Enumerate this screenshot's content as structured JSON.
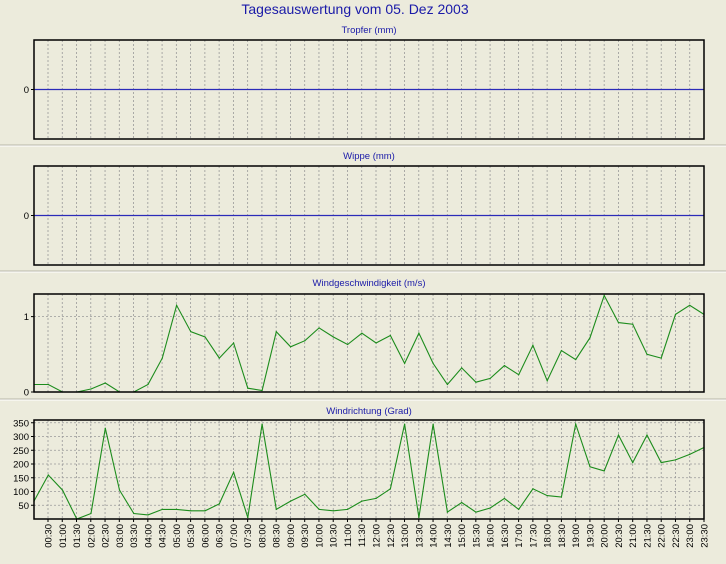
{
  "page": {
    "title": "Tagesauswertung vom 05. Dez 2003"
  },
  "colors": {
    "title": "#1a1aa8",
    "zero_line": "#2b2bb8",
    "series": "#1c8c1c",
    "grid": "#999999",
    "background": "#ecebdc"
  },
  "x_labels": [
    "00:30",
    "01:00",
    "01:30",
    "02:00",
    "02:30",
    "03:00",
    "03:30",
    "04:00",
    "04:30",
    "05:00",
    "05:30",
    "06:00",
    "06:30",
    "07:00",
    "07:30",
    "08:00",
    "08:30",
    "09:00",
    "09:30",
    "10:00",
    "10:30",
    "11:00",
    "11:30",
    "12:00",
    "12:30",
    "13:00",
    "13:30",
    "14:00",
    "14:30",
    "15:00",
    "15:30",
    "16:00",
    "16:30",
    "17:00",
    "17:30",
    "18:00",
    "18:30",
    "19:00",
    "19:30",
    "20:00",
    "20:30",
    "21:00",
    "21:30",
    "22:00",
    "22:30",
    "23:00",
    "23:30"
  ],
  "chart_data": [
    {
      "type": "line",
      "title": "Tropfer (mm)",
      "grid": true,
      "y_ticks": [
        "0"
      ],
      "zero_line": true,
      "values": []
    },
    {
      "type": "line",
      "title": "Wippe (mm)",
      "grid": true,
      "y_ticks": [
        "0"
      ],
      "zero_line": true,
      "values": []
    },
    {
      "type": "line",
      "title": "Windgeschwindigkeit (m/s)",
      "grid": true,
      "ylim": [
        0,
        1.3
      ],
      "y_ticks": [
        "0",
        "1"
      ],
      "zero_line": false,
      "values": [
        0.1,
        0.1,
        0.0,
        0.0,
        0.04,
        0.12,
        0.0,
        0.0,
        0.1,
        0.45,
        1.15,
        0.8,
        0.73,
        0.45,
        0.65,
        0.05,
        0.02,
        0.8,
        0.6,
        0.68,
        0.85,
        0.73,
        0.63,
        0.78,
        0.65,
        0.75,
        0.38,
        0.78,
        0.38,
        0.1,
        0.32,
        0.13,
        0.18,
        0.35,
        0.23,
        0.62,
        0.15,
        0.55,
        0.43,
        0.72,
        1.28,
        0.92,
        0.9,
        0.5,
        0.45,
        1.03,
        1.15,
        1.03
      ]
    },
    {
      "type": "line",
      "title": "Windrichtung (Grad)",
      "grid": true,
      "ylim": [
        0,
        360
      ],
      "y_ticks": [
        "50",
        "100",
        "150",
        "200",
        "250",
        "300",
        "350"
      ],
      "zero_line": false,
      "values": [
        65,
        160,
        105,
        0,
        20,
        330,
        105,
        20,
        15,
        35,
        35,
        30,
        30,
        55,
        170,
        5,
        345,
        35,
        65,
        90,
        35,
        30,
        35,
        65,
        75,
        110,
        345,
        5,
        345,
        25,
        60,
        25,
        40,
        75,
        35,
        110,
        85,
        80,
        345,
        190,
        175,
        305,
        205,
        305,
        205,
        215,
        235,
        260
      ]
    }
  ]
}
